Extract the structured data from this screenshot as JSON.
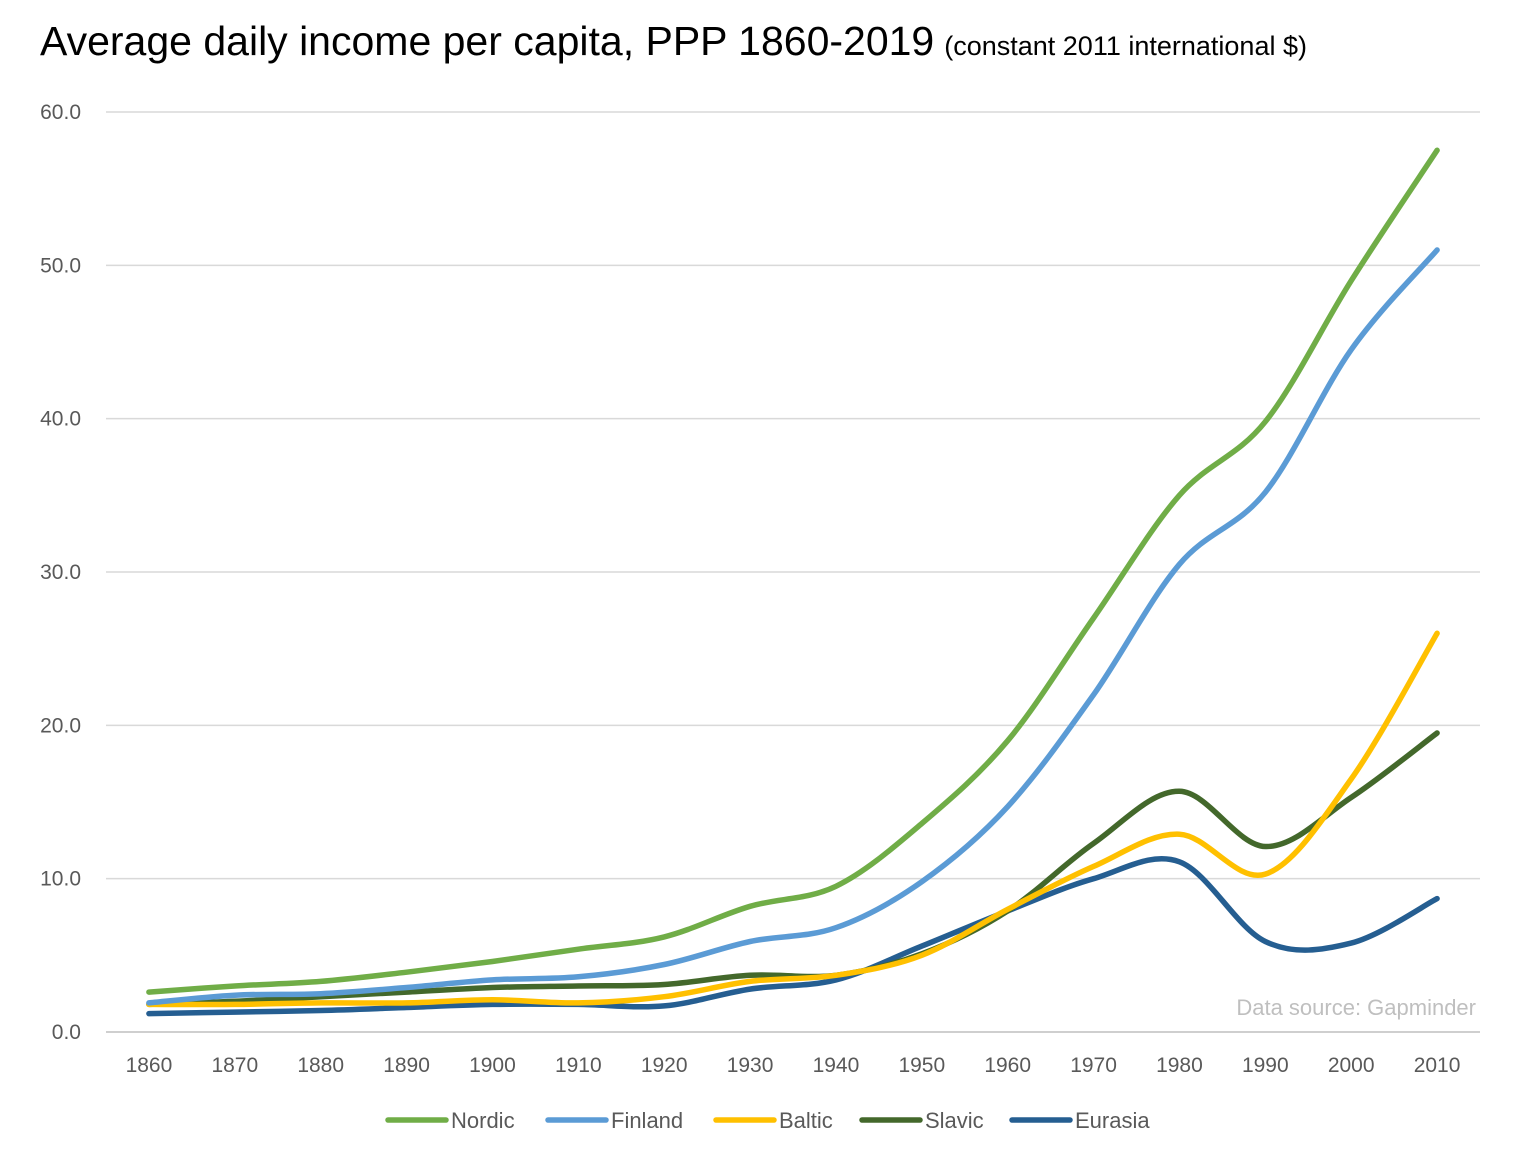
{
  "chart_data": {
    "type": "line",
    "title": "Average daily income per capita, PPP 1860-2019",
    "subtitle": "(constant 2011 international $)",
    "source_note": "Data source: Gapminder",
    "xlabel": "",
    "ylabel": "",
    "categories": [
      "1860",
      "1870",
      "1880",
      "1890",
      "1900",
      "1910",
      "1920",
      "1930",
      "1940",
      "1950",
      "1960",
      "1970",
      "1980",
      "1990",
      "2000",
      "2010"
    ],
    "y_tick_labels": [
      "0.0",
      "10.0",
      "20.0",
      "30.0",
      "40.0",
      "50.0",
      "60.0"
    ],
    "ylim": [
      0,
      60
    ],
    "grid": true,
    "legend_position": "bottom",
    "series": [
      {
        "name": "Nordic",
        "color": "#70AD47",
        "values": [
          2.6,
          3.0,
          3.3,
          3.9,
          4.6,
          5.4,
          6.2,
          8.2,
          9.5,
          13.6,
          19.0,
          27.0,
          35.0,
          39.8,
          49.0,
          57.5
        ]
      },
      {
        "name": "Finland",
        "color": "#5B9BD5",
        "values": [
          1.9,
          2.4,
          2.5,
          2.9,
          3.4,
          3.6,
          4.4,
          5.9,
          6.8,
          9.8,
          14.7,
          22.0,
          30.5,
          35.2,
          44.5,
          51.0
        ]
      },
      {
        "name": "Baltic",
        "color": "#FFC000",
        "values": [
          1.8,
          1.8,
          1.9,
          1.9,
          2.1,
          1.9,
          2.3,
          3.3,
          3.7,
          5.0,
          8.0,
          10.8,
          12.9,
          10.3,
          16.5,
          26.0
        ]
      },
      {
        "name": "Slavic",
        "color": "#43682B",
        "values": [
          1.8,
          2.0,
          2.3,
          2.6,
          2.9,
          3.0,
          3.1,
          3.7,
          3.7,
          5.1,
          7.9,
          12.3,
          15.7,
          12.1,
          15.3,
          19.5
        ]
      },
      {
        "name": "Eurasia",
        "color": "#255E91",
        "values": [
          1.2,
          1.3,
          1.4,
          1.6,
          1.8,
          1.8,
          1.7,
          2.8,
          3.4,
          5.6,
          7.9,
          10.0,
          11.1,
          5.9,
          5.8,
          8.7
        ]
      }
    ]
  }
}
